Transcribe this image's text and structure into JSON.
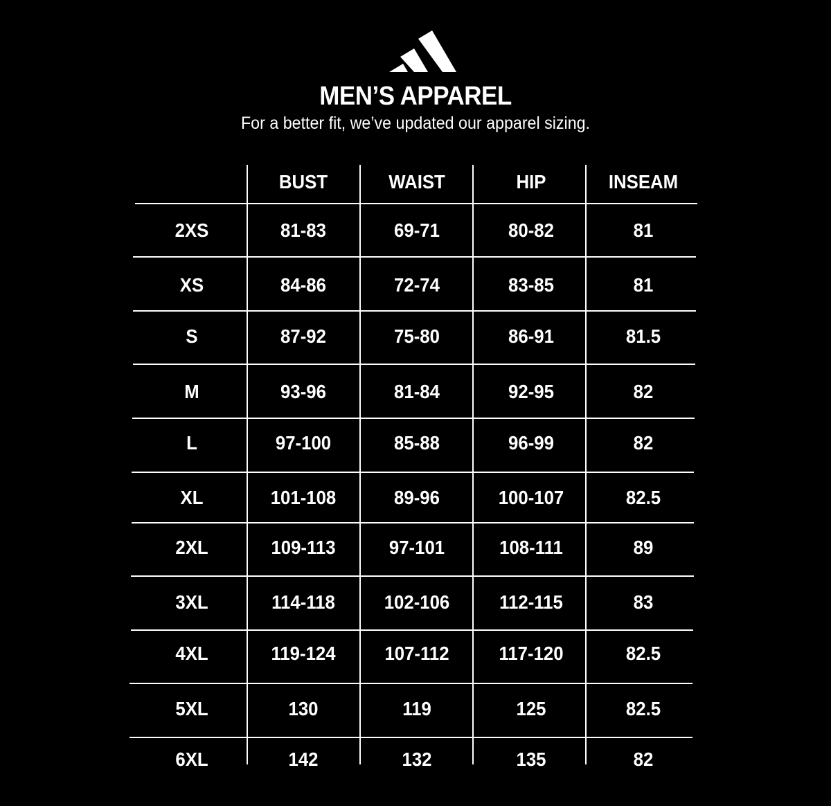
{
  "brand": {
    "logo": "adidas three-bar logo",
    "color": "#ffffff",
    "background": "#000000"
  },
  "header": {
    "title": "MEN’S APPAREL",
    "subtitle": "For a better fit, we’ve updated our apparel sizing."
  },
  "table": {
    "columns": [
      "",
      "BUST",
      "WAIST",
      "HIP",
      "INSEAM"
    ],
    "rows": [
      [
        "2XS",
        "81-83",
        "69-71",
        "80-82",
        "81"
      ],
      [
        "XS",
        "84-86",
        "72-74",
        "83-85",
        "81"
      ],
      [
        "S",
        "87-92",
        "75-80",
        "86-91",
        "81.5"
      ],
      [
        "M",
        "93-96",
        "81-84",
        "92-95",
        "82"
      ],
      [
        "L",
        "97-100",
        "85-88",
        "96-99",
        "82"
      ],
      [
        "XL",
        "101-108",
        "89-96",
        "100-107",
        "82.5"
      ],
      [
        "2XL",
        "109-113",
        "97-101",
        "108-111",
        "89"
      ],
      [
        "3XL",
        "114-118",
        "102-106",
        "112-115",
        "83"
      ],
      [
        "4XL",
        "119-124",
        "107-112",
        "117-120",
        "82.5"
      ],
      [
        "5XL",
        "130",
        "119",
        "125",
        "82.5"
      ],
      [
        "6XL",
        "142",
        "132",
        "135",
        "82"
      ]
    ]
  }
}
